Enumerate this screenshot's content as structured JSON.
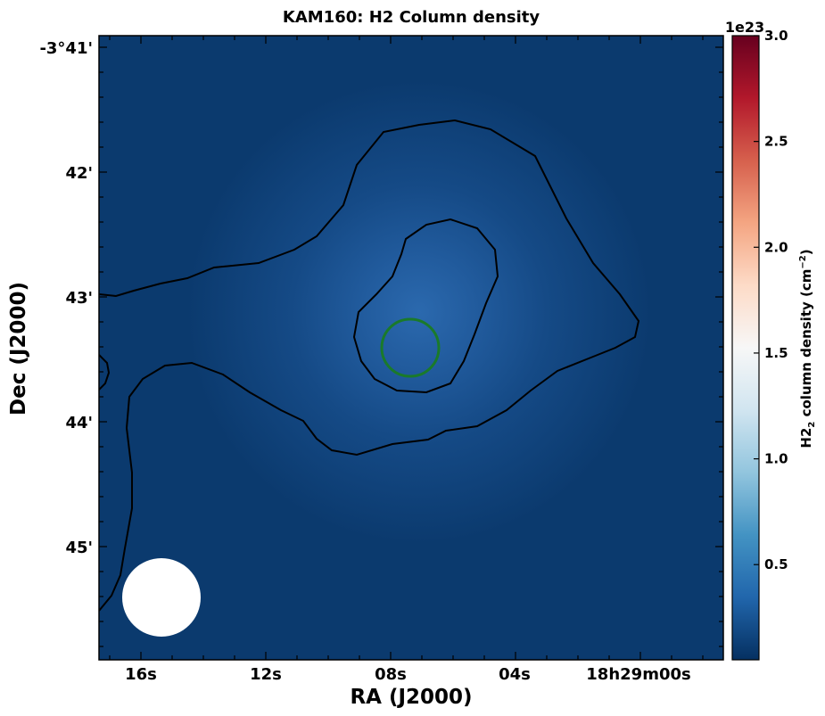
{
  "chart_data": {
    "type": "heatmap",
    "title": "KAM160: H2 Column density",
    "xlabel": "RA (J2000)",
    "ylabel": "Dec (J2000)",
    "x_tick_labels": [
      "16s",
      "12s",
      "08s",
      "04s",
      "18h29m00s"
    ],
    "y_tick_labels": [
      "-3°41'",
      "42'",
      "43'",
      "44'",
      "45'"
    ],
    "colorbar": {
      "label_prefix": "H2",
      "label_sub": "2",
      "label_mid": " column density (cm",
      "label_sup": "−2",
      "label_end": ")",
      "offset_text": "1e23",
      "ticks": [
        0.5,
        1.0,
        1.5,
        2.0,
        2.5,
        3.0
      ],
      "tick_labels": [
        "0.5",
        "1.0",
        "1.5",
        "2.0",
        "2.5",
        "3.0"
      ],
      "range": [
        0.05,
        3.0
      ],
      "colormap": "RdBu_r"
    },
    "colors": {
      "background_map": "#0a3a6e",
      "peak": "#2a68ad",
      "contour": "#000000",
      "marker_circle": "#1a7a2a",
      "beam": "#ffffff"
    },
    "annotations": {
      "source_marker": "circle",
      "beam": "filled circle"
    }
  }
}
